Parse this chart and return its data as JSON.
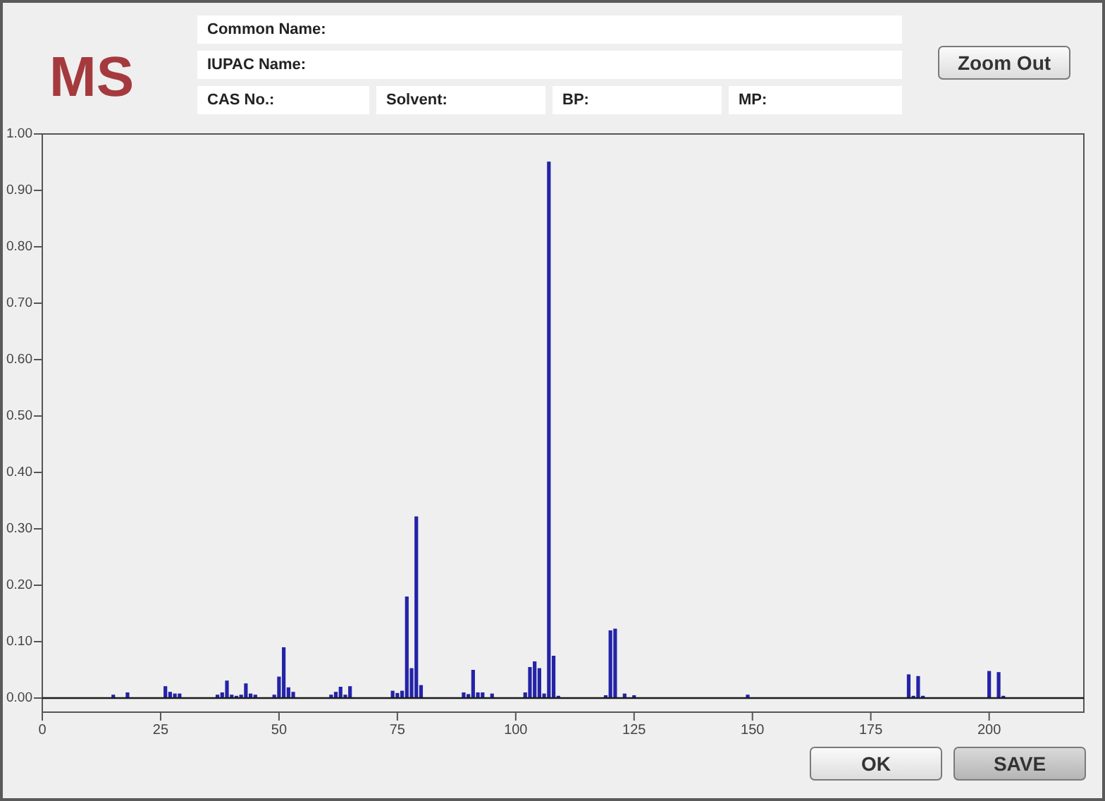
{
  "chart_data": {
    "type": "bar",
    "title": "MS",
    "x": [
      15,
      18,
      26,
      27,
      28,
      29,
      37,
      38,
      39,
      40,
      41,
      42,
      43,
      44,
      45,
      49,
      50,
      51,
      52,
      53,
      61,
      62,
      63,
      64,
      65,
      74,
      75,
      76,
      77,
      78,
      79,
      80,
      89,
      90,
      91,
      92,
      93,
      95,
      102,
      103,
      104,
      105,
      106,
      107,
      108,
      109,
      119,
      120,
      121,
      123,
      125,
      149,
      183,
      184,
      185,
      186,
      200,
      202,
      203
    ],
    "values": [
      0.006,
      0.01,
      0.021,
      0.011,
      0.008,
      0.008,
      0.006,
      0.01,
      0.031,
      0.006,
      0.004,
      0.006,
      0.026,
      0.008,
      0.006,
      0.006,
      0.038,
      0.09,
      0.019,
      0.011,
      0.006,
      0.011,
      0.02,
      0.006,
      0.021,
      0.013,
      0.009,
      0.013,
      0.18,
      0.053,
      0.322,
      0.023,
      0.01,
      0.007,
      0.05,
      0.01,
      0.01,
      0.008,
      0.01,
      0.055,
      0.065,
      0.053,
      0.008,
      0.951,
      0.075,
      0.004,
      0.005,
      0.12,
      0.123,
      0.008,
      0.005,
      0.006,
      0.042,
      0.004,
      0.039,
      0.004,
      0.048,
      0.046,
      0.004
    ],
    "color": "#2323a8",
    "xlim": [
      0,
      220
    ],
    "xticks": [
      0,
      25,
      50,
      75,
      100,
      125,
      150,
      175,
      200
    ],
    "ylim": [
      -0.025,
      1.0
    ],
    "yticks": [
      {
        "value": 0,
        "label": "0.00"
      },
      {
        "value": 0.1,
        "label": "0.10"
      },
      {
        "value": 0.2,
        "label": "0.20"
      },
      {
        "value": 0.3,
        "label": "0.30"
      },
      {
        "value": 0.4,
        "label": "0.40"
      },
      {
        "value": 0.5,
        "label": "0.50"
      },
      {
        "value": 0.6,
        "label": "0.60"
      },
      {
        "value": 0.7,
        "label": "0.70"
      },
      {
        "value": 0.8,
        "label": "0.80"
      },
      {
        "value": 0.9,
        "label": "0.90"
      },
      {
        "value": 1.0,
        "label": "1.00"
      }
    ],
    "ref_lines": [
      {
        "axis": "y",
        "value": 0,
        "color": "#1a1a1a"
      }
    ],
    "annotations": [
      "Common Name:",
      "IUPAC Name:",
      "CAS No.:",
      "Solvent:",
      "BP:",
      "MP:",
      "Zoom Out",
      "OK",
      "SAVE"
    ]
  }
}
